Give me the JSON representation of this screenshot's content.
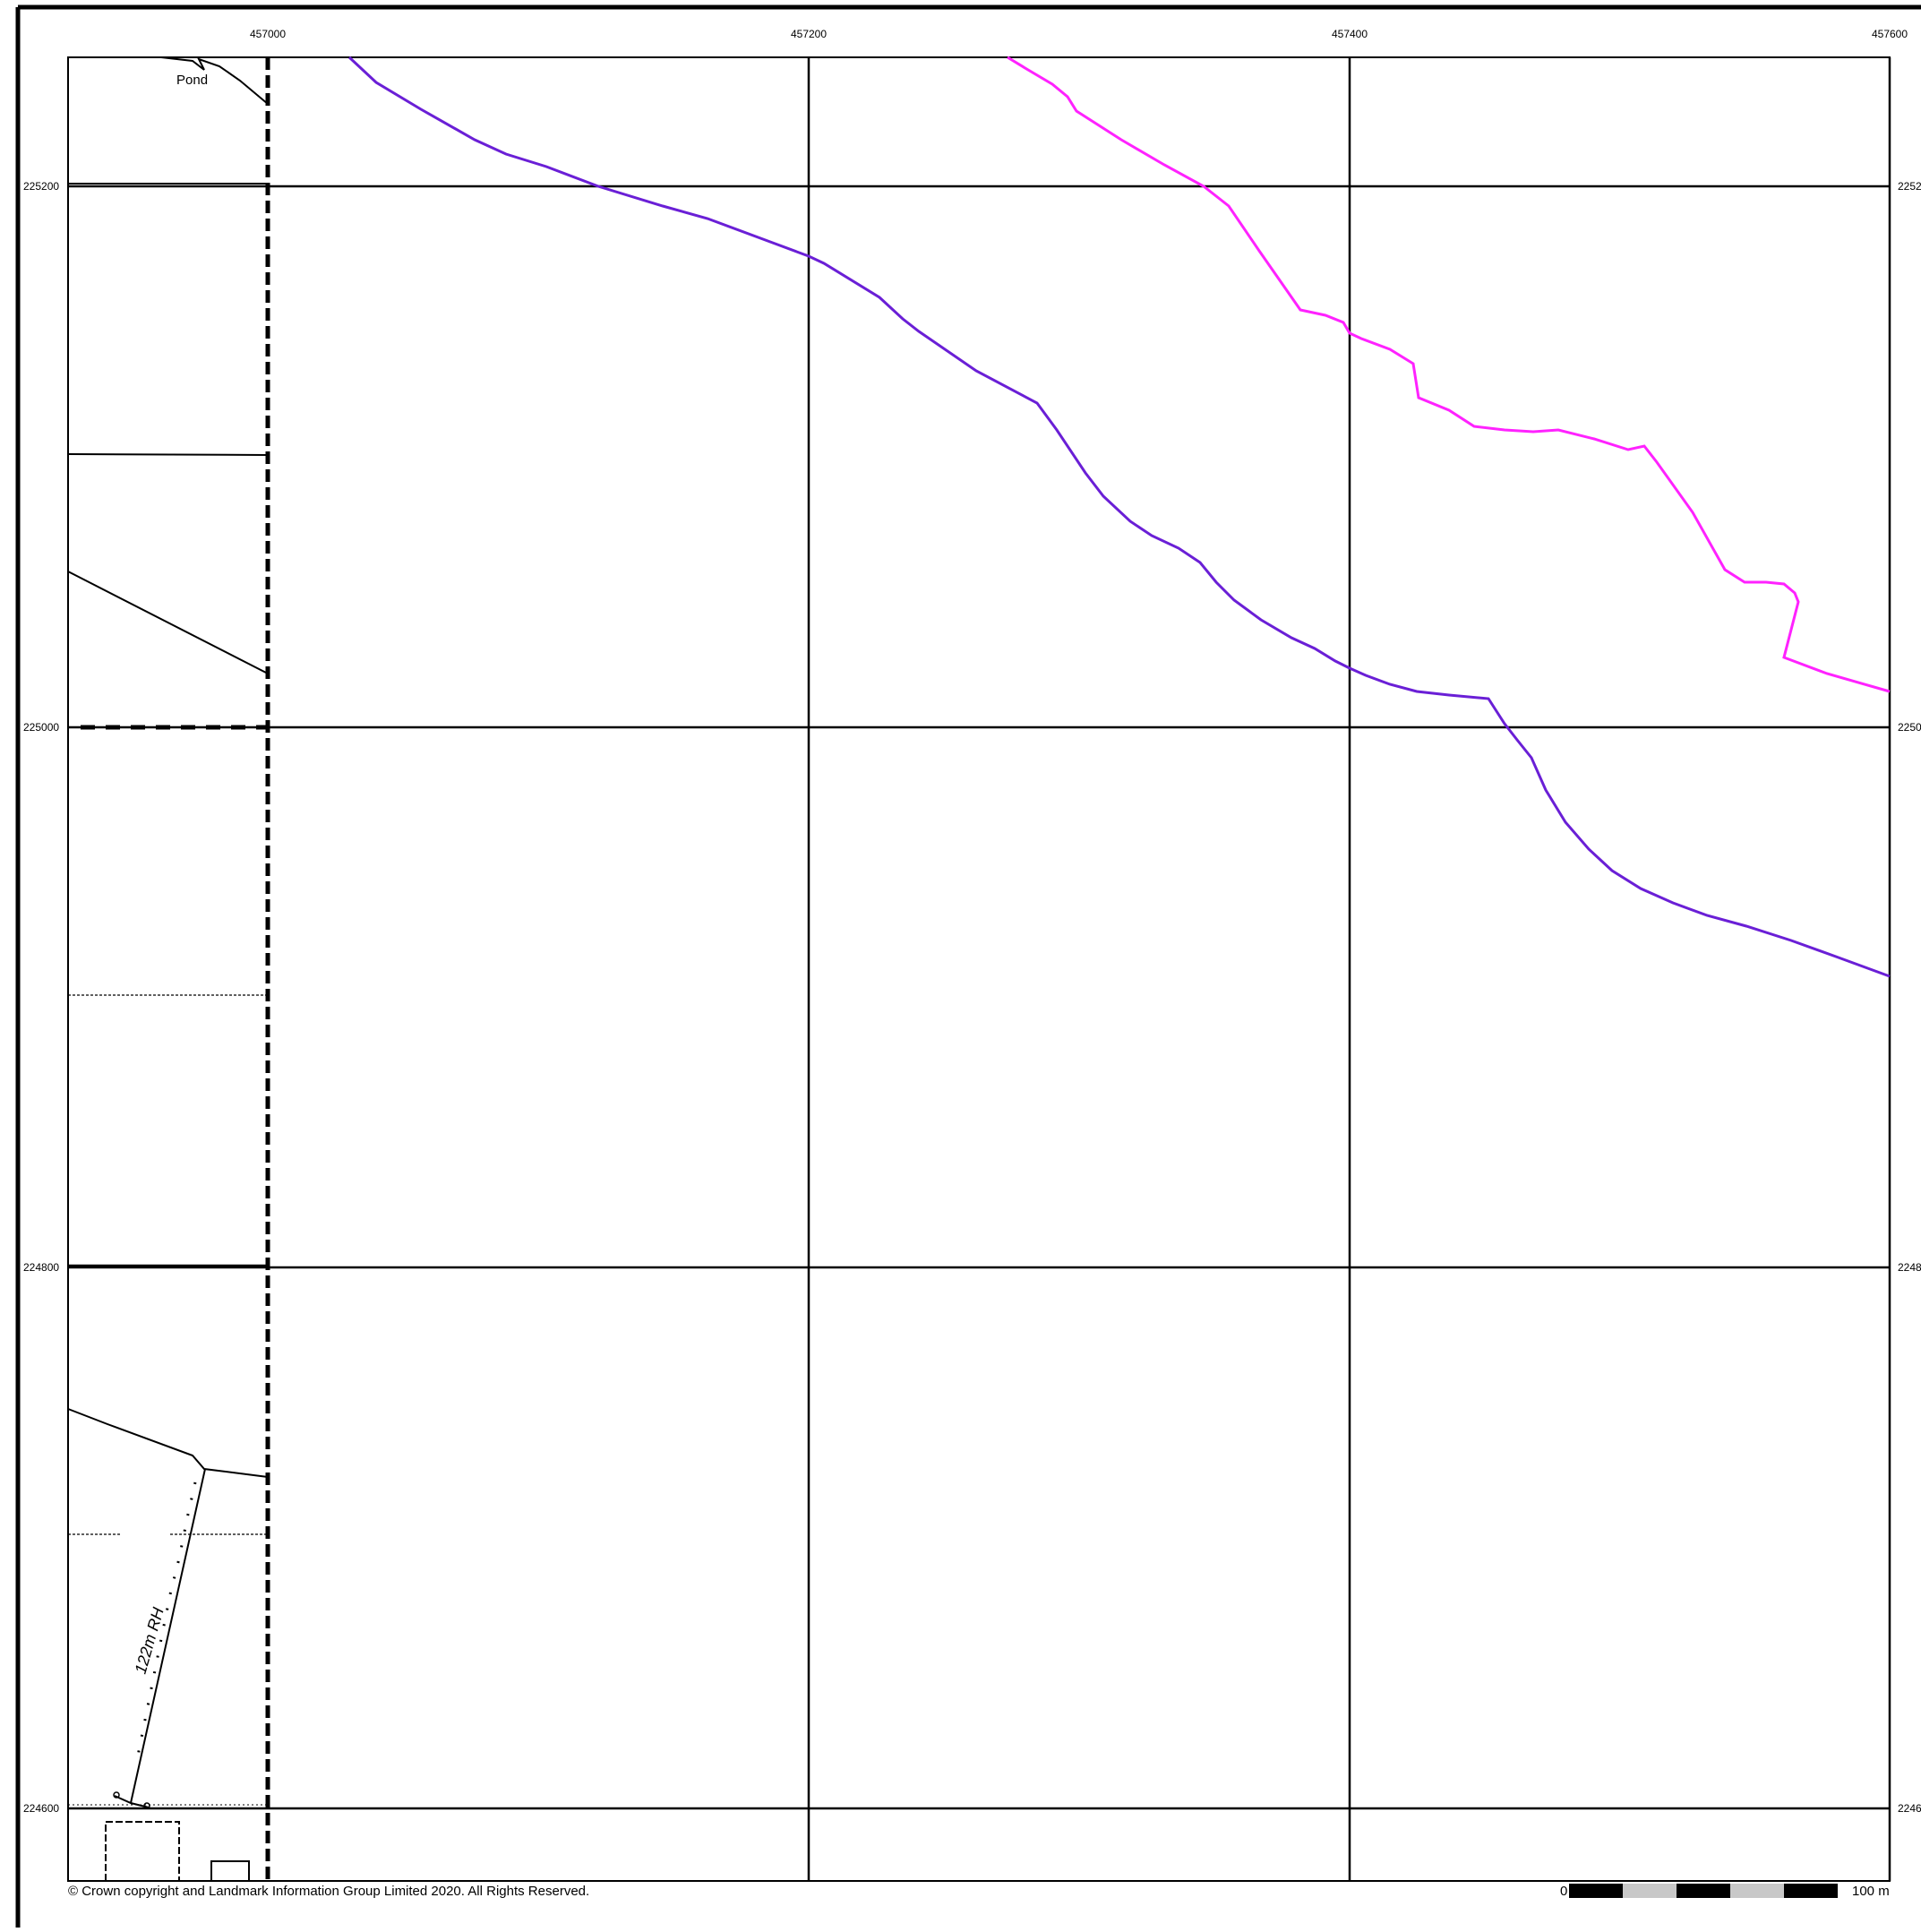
{
  "map": {
    "grid_eastings": [
      "457000",
      "457200",
      "457400",
      "457600"
    ],
    "grid_northings": [
      "225200",
      "225000",
      "224800",
      "224600"
    ],
    "right_northing_labels": [
      "2252",
      "2250",
      "2248",
      "2246"
    ],
    "feature_labels": {
      "pond": "Pond",
      "spot_height": "122m RH"
    },
    "copyright": "© Crown copyright and Landmark Information Group Limited 2020.  All Rights Reserved.",
    "scale_bar": {
      "start_label": "0",
      "end_label": "100 m",
      "segment_colors": [
        "#000000",
        "#c8c8c8",
        "#000000",
        "#c8c8c8",
        "#000000"
      ]
    },
    "line_colors": {
      "purple_line": "#6a1fd6",
      "magenta_line": "#ff22ff",
      "grid": "#000000"
    }
  }
}
